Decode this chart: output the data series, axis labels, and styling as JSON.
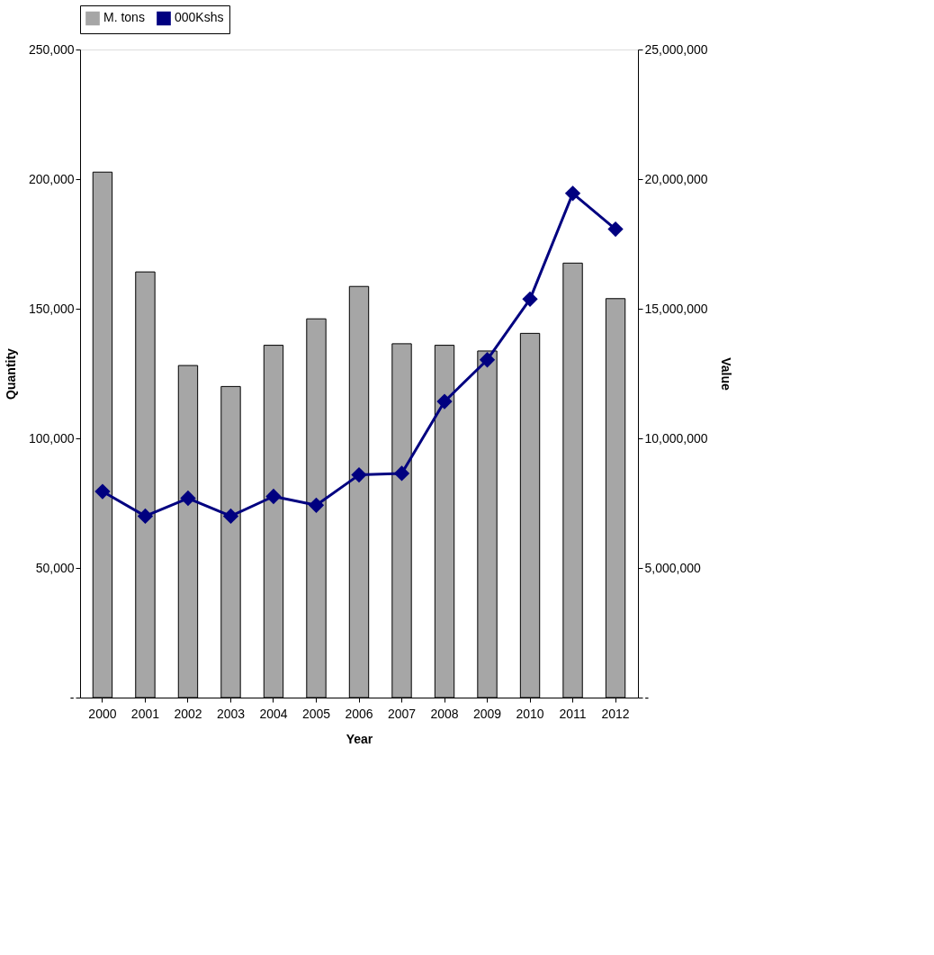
{
  "chart_data": {
    "type": "bar",
    "xlabel": "Year",
    "ylabel": "Quantity",
    "y2label": "Value",
    "categories": [
      "2000",
      "2001",
      "2002",
      "2003",
      "2004",
      "2005",
      "2006",
      "2007",
      "2008",
      "2009",
      "2010",
      "2011",
      "2012"
    ],
    "series": [
      {
        "name": "M. tons",
        "color": "#a6a6a6",
        "values": [
          202700,
          164200,
          128100,
          120000,
          135900,
          146100,
          158600,
          136500,
          135900,
          133700,
          140500,
          167600,
          153900
        ]
      },
      {
        "name": "000Kshs",
        "type": "line",
        "axis": "y2",
        "color": "#000080",
        "marker": "diamond",
        "values": [
          7950000,
          7000000,
          7690000,
          7000000,
          7760000,
          7420000,
          8590000,
          8650000,
          11420000,
          13030000,
          15370000,
          19450000,
          18070000
        ]
      }
    ],
    "ylim": [
      0,
      250000
    ],
    "yticks": [
      {
        "value": 0,
        "label": "-"
      },
      {
        "value": 50000,
        "label": "50,000"
      },
      {
        "value": 100000,
        "label": "100,000"
      },
      {
        "value": 150000,
        "label": "150,000"
      },
      {
        "value": 200000,
        "label": "200,000"
      },
      {
        "value": 250000,
        "label": "250,000"
      }
    ],
    "y2lim": [
      0,
      25000000
    ],
    "y2ticks": [
      {
        "value": 0,
        "label": "-"
      },
      {
        "value": 5000000,
        "label": "5,000,000"
      },
      {
        "value": 10000000,
        "label": "10,000,000"
      },
      {
        "value": 15000000,
        "label": "15,000,000"
      },
      {
        "value": 20000000,
        "label": "20,000,000"
      },
      {
        "value": 25000000,
        "label": "25,000,000"
      }
    ],
    "legend": "top",
    "grid": false
  }
}
